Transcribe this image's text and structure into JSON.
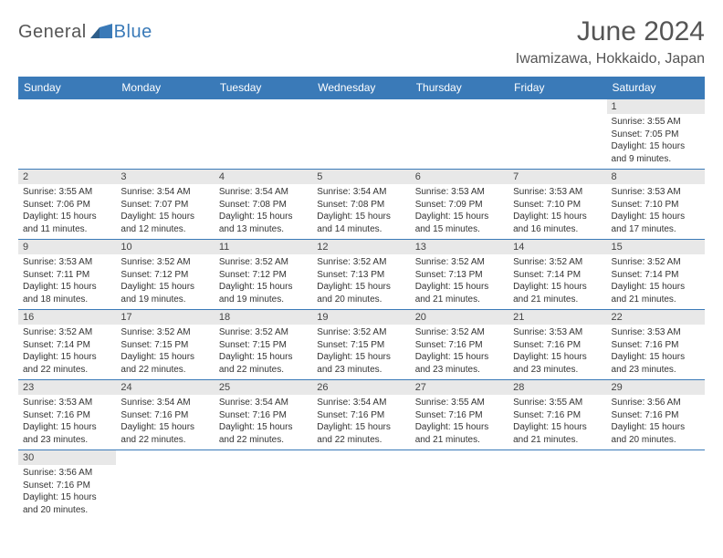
{
  "logo": {
    "general": "General",
    "blue": "Blue"
  },
  "title": "June 2024",
  "location": "Iwamizawa, Hokkaido, Japan",
  "colors": {
    "header_bg": "#3a7ab8",
    "header_text": "#ffffff",
    "daynum_bg": "#e8e8e8",
    "border": "#3a7ab8",
    "body_text": "#333333",
    "title_text": "#555555"
  },
  "weekdays": [
    "Sunday",
    "Monday",
    "Tuesday",
    "Wednesday",
    "Thursday",
    "Friday",
    "Saturday"
  ],
  "weeks": [
    [
      null,
      null,
      null,
      null,
      null,
      null,
      {
        "n": "1",
        "sr": "Sunrise: 3:55 AM",
        "ss": "Sunset: 7:05 PM",
        "dl1": "Daylight: 15 hours",
        "dl2": "and 9 minutes."
      }
    ],
    [
      {
        "n": "2",
        "sr": "Sunrise: 3:55 AM",
        "ss": "Sunset: 7:06 PM",
        "dl1": "Daylight: 15 hours",
        "dl2": "and 11 minutes."
      },
      {
        "n": "3",
        "sr": "Sunrise: 3:54 AM",
        "ss": "Sunset: 7:07 PM",
        "dl1": "Daylight: 15 hours",
        "dl2": "and 12 minutes."
      },
      {
        "n": "4",
        "sr": "Sunrise: 3:54 AM",
        "ss": "Sunset: 7:08 PM",
        "dl1": "Daylight: 15 hours",
        "dl2": "and 13 minutes."
      },
      {
        "n": "5",
        "sr": "Sunrise: 3:54 AM",
        "ss": "Sunset: 7:08 PM",
        "dl1": "Daylight: 15 hours",
        "dl2": "and 14 minutes."
      },
      {
        "n": "6",
        "sr": "Sunrise: 3:53 AM",
        "ss": "Sunset: 7:09 PM",
        "dl1": "Daylight: 15 hours",
        "dl2": "and 15 minutes."
      },
      {
        "n": "7",
        "sr": "Sunrise: 3:53 AM",
        "ss": "Sunset: 7:10 PM",
        "dl1": "Daylight: 15 hours",
        "dl2": "and 16 minutes."
      },
      {
        "n": "8",
        "sr": "Sunrise: 3:53 AM",
        "ss": "Sunset: 7:10 PM",
        "dl1": "Daylight: 15 hours",
        "dl2": "and 17 minutes."
      }
    ],
    [
      {
        "n": "9",
        "sr": "Sunrise: 3:53 AM",
        "ss": "Sunset: 7:11 PM",
        "dl1": "Daylight: 15 hours",
        "dl2": "and 18 minutes."
      },
      {
        "n": "10",
        "sr": "Sunrise: 3:52 AM",
        "ss": "Sunset: 7:12 PM",
        "dl1": "Daylight: 15 hours",
        "dl2": "and 19 minutes."
      },
      {
        "n": "11",
        "sr": "Sunrise: 3:52 AM",
        "ss": "Sunset: 7:12 PM",
        "dl1": "Daylight: 15 hours",
        "dl2": "and 19 minutes."
      },
      {
        "n": "12",
        "sr": "Sunrise: 3:52 AM",
        "ss": "Sunset: 7:13 PM",
        "dl1": "Daylight: 15 hours",
        "dl2": "and 20 minutes."
      },
      {
        "n": "13",
        "sr": "Sunrise: 3:52 AM",
        "ss": "Sunset: 7:13 PM",
        "dl1": "Daylight: 15 hours",
        "dl2": "and 21 minutes."
      },
      {
        "n": "14",
        "sr": "Sunrise: 3:52 AM",
        "ss": "Sunset: 7:14 PM",
        "dl1": "Daylight: 15 hours",
        "dl2": "and 21 minutes."
      },
      {
        "n": "15",
        "sr": "Sunrise: 3:52 AM",
        "ss": "Sunset: 7:14 PM",
        "dl1": "Daylight: 15 hours",
        "dl2": "and 21 minutes."
      }
    ],
    [
      {
        "n": "16",
        "sr": "Sunrise: 3:52 AM",
        "ss": "Sunset: 7:14 PM",
        "dl1": "Daylight: 15 hours",
        "dl2": "and 22 minutes."
      },
      {
        "n": "17",
        "sr": "Sunrise: 3:52 AM",
        "ss": "Sunset: 7:15 PM",
        "dl1": "Daylight: 15 hours",
        "dl2": "and 22 minutes."
      },
      {
        "n": "18",
        "sr": "Sunrise: 3:52 AM",
        "ss": "Sunset: 7:15 PM",
        "dl1": "Daylight: 15 hours",
        "dl2": "and 22 minutes."
      },
      {
        "n": "19",
        "sr": "Sunrise: 3:52 AM",
        "ss": "Sunset: 7:15 PM",
        "dl1": "Daylight: 15 hours",
        "dl2": "and 23 minutes."
      },
      {
        "n": "20",
        "sr": "Sunrise: 3:52 AM",
        "ss": "Sunset: 7:16 PM",
        "dl1": "Daylight: 15 hours",
        "dl2": "and 23 minutes."
      },
      {
        "n": "21",
        "sr": "Sunrise: 3:53 AM",
        "ss": "Sunset: 7:16 PM",
        "dl1": "Daylight: 15 hours",
        "dl2": "and 23 minutes."
      },
      {
        "n": "22",
        "sr": "Sunrise: 3:53 AM",
        "ss": "Sunset: 7:16 PM",
        "dl1": "Daylight: 15 hours",
        "dl2": "and 23 minutes."
      }
    ],
    [
      {
        "n": "23",
        "sr": "Sunrise: 3:53 AM",
        "ss": "Sunset: 7:16 PM",
        "dl1": "Daylight: 15 hours",
        "dl2": "and 23 minutes."
      },
      {
        "n": "24",
        "sr": "Sunrise: 3:54 AM",
        "ss": "Sunset: 7:16 PM",
        "dl1": "Daylight: 15 hours",
        "dl2": "and 22 minutes."
      },
      {
        "n": "25",
        "sr": "Sunrise: 3:54 AM",
        "ss": "Sunset: 7:16 PM",
        "dl1": "Daylight: 15 hours",
        "dl2": "and 22 minutes."
      },
      {
        "n": "26",
        "sr": "Sunrise: 3:54 AM",
        "ss": "Sunset: 7:16 PM",
        "dl1": "Daylight: 15 hours",
        "dl2": "and 22 minutes."
      },
      {
        "n": "27",
        "sr": "Sunrise: 3:55 AM",
        "ss": "Sunset: 7:16 PM",
        "dl1": "Daylight: 15 hours",
        "dl2": "and 21 minutes."
      },
      {
        "n": "28",
        "sr": "Sunrise: 3:55 AM",
        "ss": "Sunset: 7:16 PM",
        "dl1": "Daylight: 15 hours",
        "dl2": "and 21 minutes."
      },
      {
        "n": "29",
        "sr": "Sunrise: 3:56 AM",
        "ss": "Sunset: 7:16 PM",
        "dl1": "Daylight: 15 hours",
        "dl2": "and 20 minutes."
      }
    ],
    [
      {
        "n": "30",
        "sr": "Sunrise: 3:56 AM",
        "ss": "Sunset: 7:16 PM",
        "dl1": "Daylight: 15 hours",
        "dl2": "and 20 minutes."
      },
      null,
      null,
      null,
      null,
      null,
      null
    ]
  ]
}
